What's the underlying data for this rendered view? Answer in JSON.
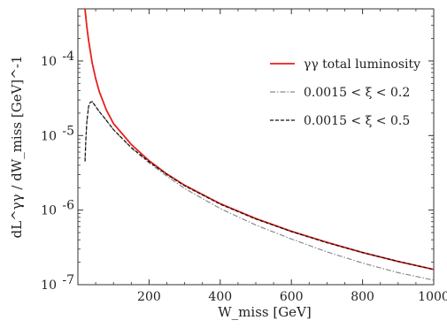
{
  "chart_data": {
    "type": "line",
    "title": "",
    "xlabel": "W_miss [GeV]",
    "ylabel": "dL^γγ / dW_miss [GeV]^-1",
    "xlim": [
      0,
      1000
    ],
    "ylim": [
      1e-07,
      0.0005
    ],
    "yscale": "log",
    "grid": false,
    "legend_position": "top-right",
    "x_ticks": [
      200,
      400,
      600,
      800,
      1000
    ],
    "x_tick_labels": [
      "200",
      "400",
      "600",
      "800",
      "1000"
    ],
    "y_ticks": [
      1e-07,
      1e-06,
      1e-05,
      0.0001
    ],
    "y_tick_labels": [
      "10",
      "10",
      "10",
      "10"
    ],
    "y_tick_exponents": [
      "-7",
      "-6",
      "-5",
      "-4"
    ],
    "series": [
      {
        "name": "γγ total luminosity",
        "color": "#e8201c",
        "style": "solid",
        "x": [
          20,
          25,
          30,
          40,
          50,
          60,
          80,
          100,
          150,
          200,
          250,
          300,
          400,
          500,
          600,
          700,
          800,
          900,
          1000
        ],
        "y": [
          0.0005,
          0.00029,
          0.00019,
          9.5e-05,
          5.8e-05,
          3.9e-05,
          2.2e-05,
          1.45e-05,
          7.6e-06,
          4.6e-06,
          3.05e-06,
          2.15e-06,
          1.22e-06,
          7.7e-07,
          5.2e-07,
          3.7e-07,
          2.7e-07,
          2.05e-07,
          1.6e-07
        ]
      },
      {
        "name": "0.0015 < ξ < 0.2",
        "color": "#8a8a8a",
        "style": "dashdot",
        "x": [
          20,
          22,
          25,
          30,
          35,
          40,
          45,
          50,
          60,
          80,
          100,
          150,
          200,
          250,
          300,
          400,
          500,
          600,
          700,
          800,
          900,
          1000
        ],
        "y": [
          4.5e-06,
          8e-06,
          1.5e-05,
          2.45e-05,
          2.8e-05,
          2.85e-05,
          2.65e-05,
          2.45e-05,
          2.1e-05,
          1.6e-05,
          1.2e-05,
          6.8e-06,
          4.3e-06,
          2.85e-06,
          1.95e-06,
          1.05e-06,
          6.3e-07,
          4.1e-07,
          2.75e-07,
          1.95e-07,
          1.45e-07,
          1.15e-07
        ]
      },
      {
        "name": "0.0015 < ξ < 0.5",
        "color": "#111111",
        "style": "dashed",
        "x": [
          20,
          22,
          25,
          30,
          35,
          40,
          45,
          50,
          60,
          80,
          100,
          150,
          200,
          250,
          300,
          400,
          500,
          600,
          700,
          800,
          900,
          1000
        ],
        "y": [
          4.5e-06,
          8e-06,
          1.5e-05,
          2.45e-05,
          2.8e-05,
          2.85e-05,
          2.65e-05,
          2.45e-05,
          2.1e-05,
          1.6e-05,
          1.2e-05,
          6.9e-06,
          4.45e-06,
          3e-06,
          2.12e-06,
          1.2e-06,
          7.6e-07,
          5.15e-07,
          3.65e-07,
          2.7e-07,
          2.05e-07,
          1.6e-07
        ]
      }
    ]
  }
}
